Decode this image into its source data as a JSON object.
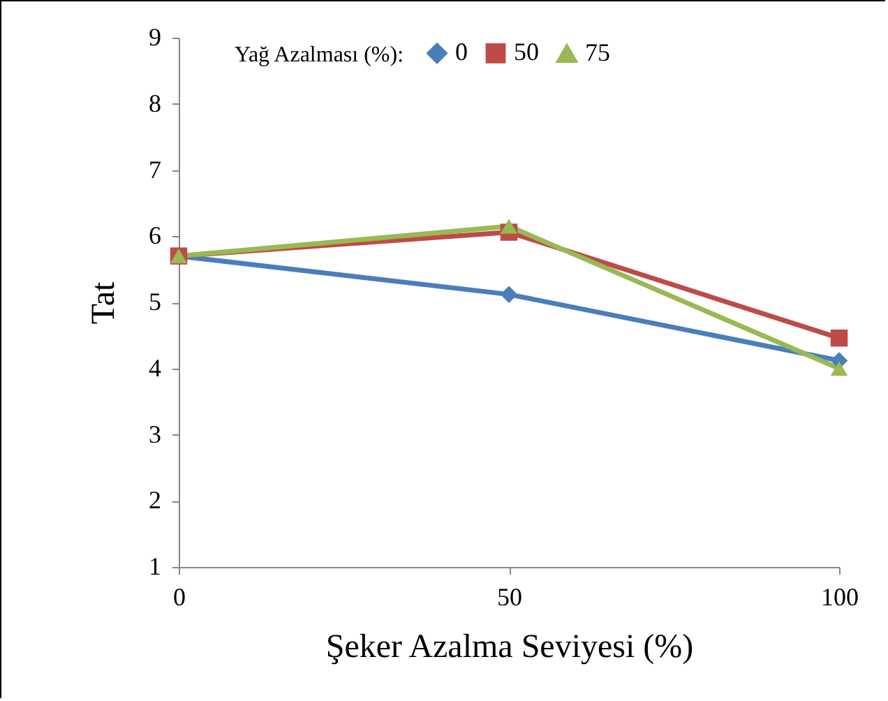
{
  "chart_data": {
    "type": "line",
    "xlabel": "Şeker Azalma  Seviyesi  (%)",
    "ylabel": "Tat",
    "legend_title": "Yağ Azalması (%):",
    "x": [
      0,
      50,
      100
    ],
    "xlim": [
      0,
      100
    ],
    "xticks": [
      0,
      50,
      100
    ],
    "ylim": [
      1,
      9
    ],
    "yticks": [
      1,
      2,
      3,
      4,
      5,
      6,
      7,
      8,
      9
    ],
    "grid": false,
    "legend": "top right",
    "line_style": "solid",
    "series": [
      {
        "name": "0",
        "color": "#4a7ebb",
        "marker": "diamond",
        "values": [
          5.7,
          5.12,
          4.12
        ]
      },
      {
        "name": "50",
        "color": "#be4b48",
        "marker": "square",
        "values": [
          5.7,
          6.06,
          4.46
        ]
      },
      {
        "name": "75",
        "color": "#98b954",
        "marker": "triangle",
        "values": [
          5.7,
          6.15,
          4.0
        ]
      }
    ]
  }
}
